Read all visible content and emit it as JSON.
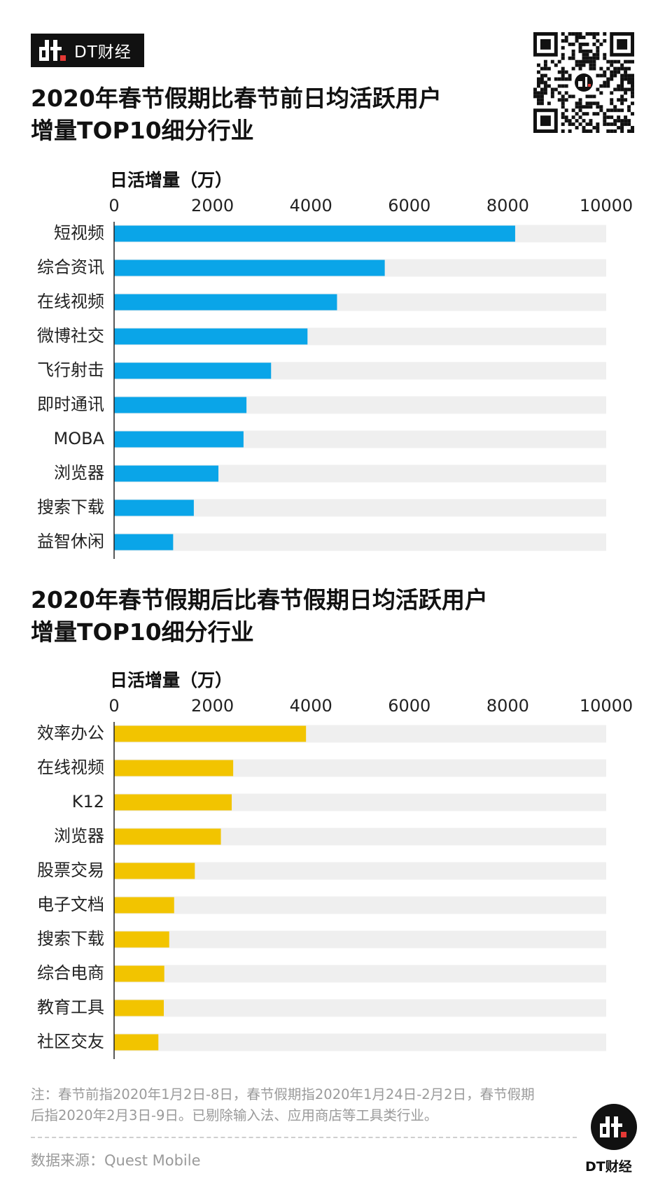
{
  "brand": {
    "name": "DT财经"
  },
  "chart_data": [
    {
      "type": "bar",
      "orientation": "horizontal",
      "title": "2020年春节假期比春节前日均活跃用户增量TOP10细分行业",
      "title_lines": [
        "2020年春节假期比春节前日均活跃用户",
        "增量TOP10细分行业"
      ],
      "unit_label": "日活增量（万）",
      "xlim": [
        0,
        10000
      ],
      "ticks": [
        "0",
        "2000",
        "4000",
        "6000",
        "8000",
        "10000"
      ],
      "categories": [
        "短视频",
        "综合资讯",
        "在线视频",
        "微博社交",
        "飞行射击",
        "即时通讯",
        "MOBA",
        "浏览器",
        "搜索下载",
        "益智休闲"
      ],
      "values": [
        8150,
        5500,
        4530,
        3930,
        3190,
        2690,
        2630,
        2120,
        1620,
        1200
      ],
      "bar_color": "#0aa5e8",
      "track_color": "#efefef",
      "grid": false
    },
    {
      "type": "bar",
      "orientation": "horizontal",
      "title": "2020年春节假期后比春节假期日均活跃用户增量TOP10细分行业",
      "title_lines": [
        "2020年春节假期后比春节假期日均活跃用户",
        "增量TOP10细分行业"
      ],
      "unit_label": "日活增量（万）",
      "xlim": [
        0,
        10000
      ],
      "ticks": [
        "0",
        "2000",
        "4000",
        "6000",
        "8000",
        "10000"
      ],
      "categories": [
        "效率办公",
        "在线视频",
        "K12",
        "浏览器",
        "股票交易",
        "电子文档",
        "搜索下载",
        "综合电商",
        "教育工具",
        "社区交友"
      ],
      "values": [
        3900,
        2420,
        2390,
        2170,
        1640,
        1220,
        1120,
        1020,
        1010,
        900
      ],
      "bar_color": "#f2c400",
      "track_color": "#efefef",
      "grid": false
    }
  ],
  "footer": {
    "note_lines": [
      "注：春节前指2020年1月2日-8日，春节假期指2020年1月24日-2月2日，春节假期",
      "后指2020年2月3日-9日。已剔除输入法、应用商店等工具类行业。"
    ],
    "source": "数据来源：Quest Mobile"
  }
}
